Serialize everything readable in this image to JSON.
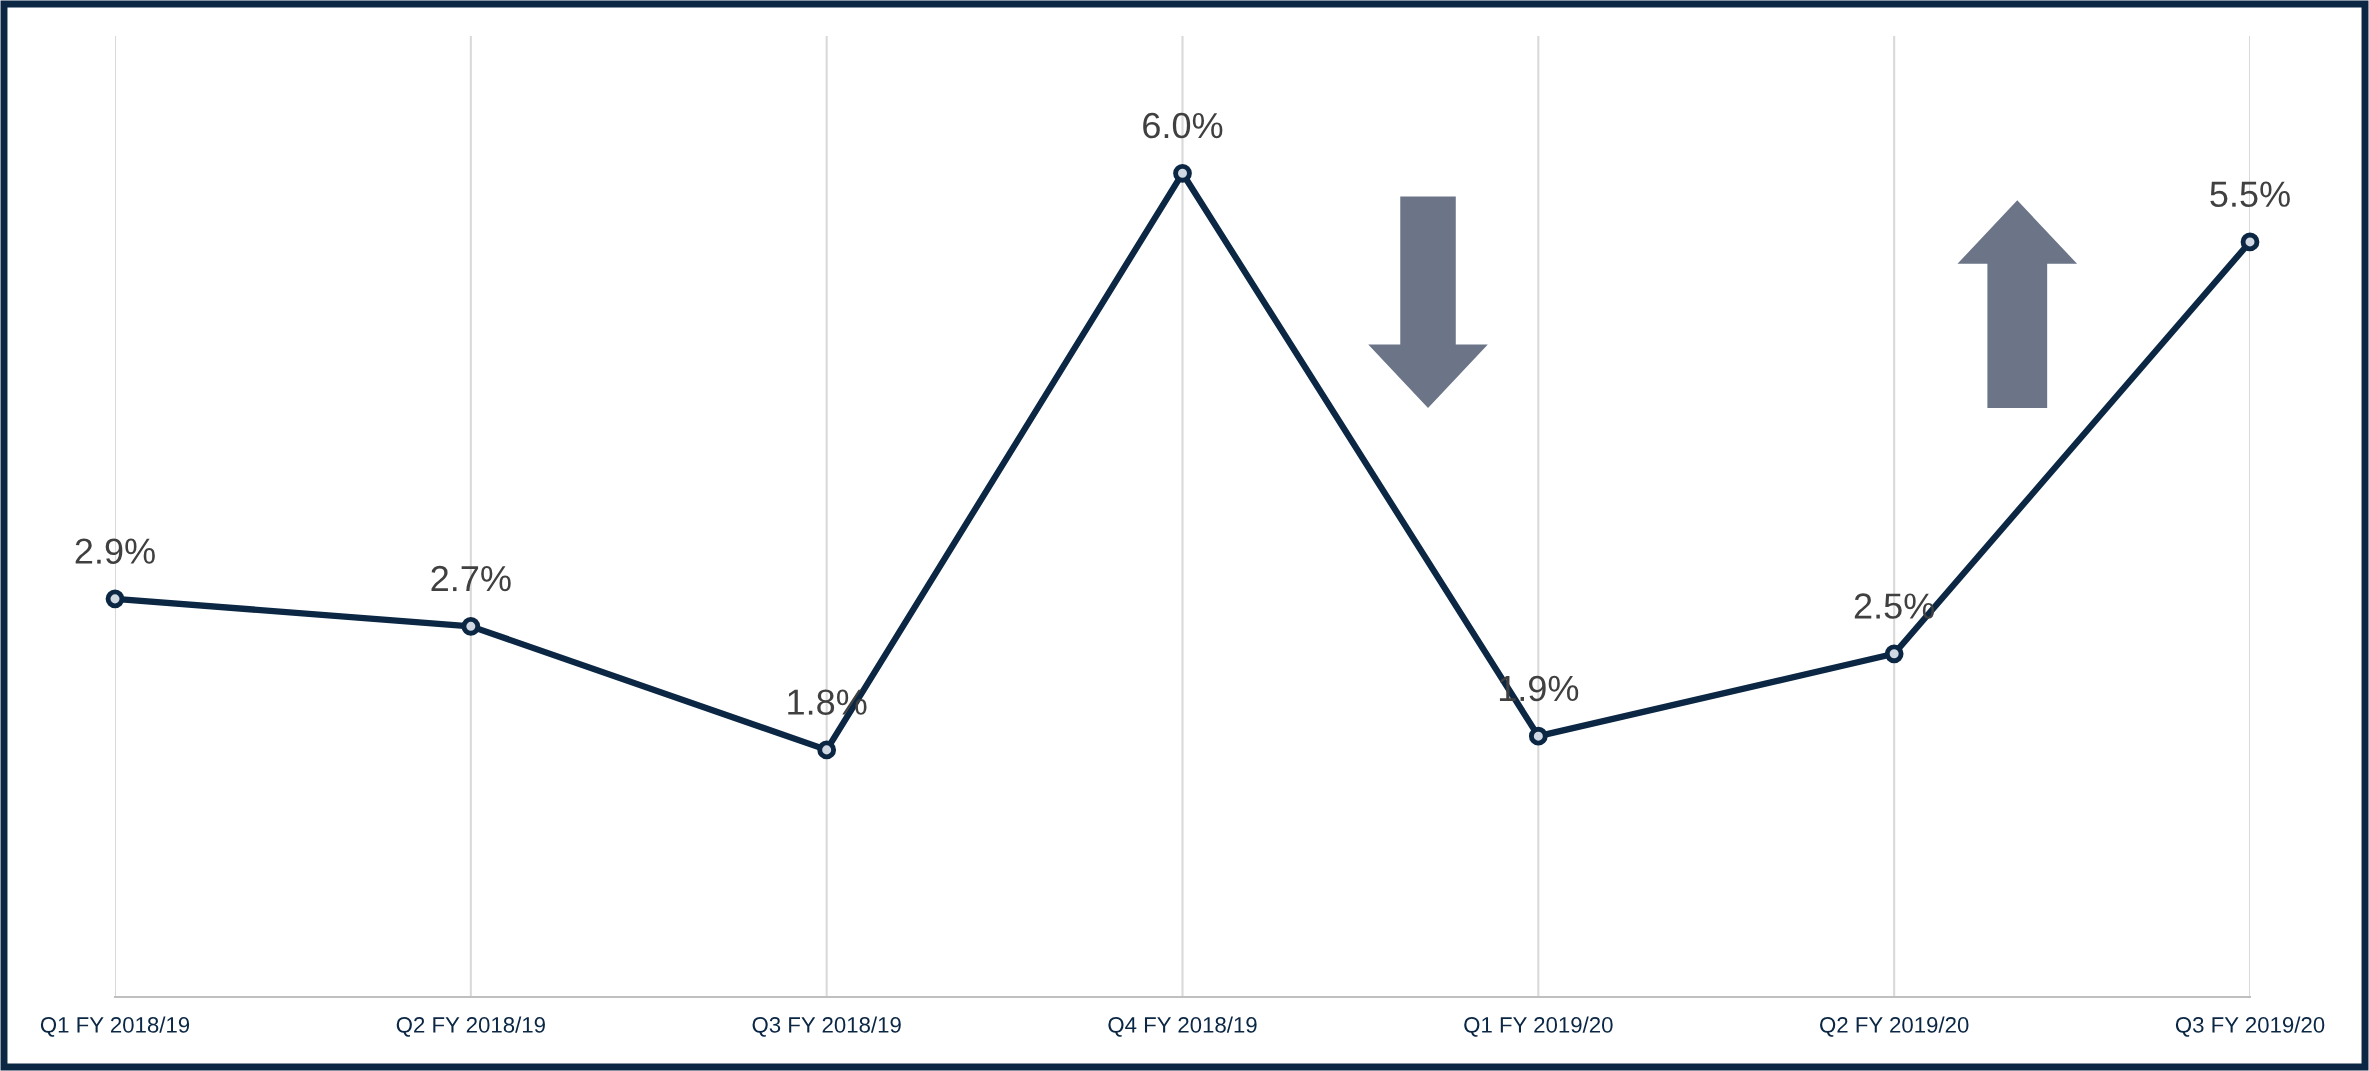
{
  "chart_data": {
    "type": "line",
    "categories": [
      "Q1 FY 2018/19",
      "Q2 FY 2018/19",
      "Q3 FY 2018/19",
      "Q4 FY 2018/19",
      "Q1 FY 2019/20",
      "Q2 FY 2019/20",
      "Q3 FY 2019/20"
    ],
    "series": [
      {
        "color": "#0b2744",
        "values": [
          2.9,
          2.7,
          1.8,
          6.0,
          1.9,
          2.5,
          5.5
        ],
        "value_labels": [
          "2.9%",
          "2.7%",
          "1.8%",
          "6.0%",
          "1.9%",
          "2.5%",
          "5.5%"
        ]
      }
    ],
    "marker": "circle",
    "line_style": "solid",
    "grid": "x",
    "tick_labels": "x"
  }
}
